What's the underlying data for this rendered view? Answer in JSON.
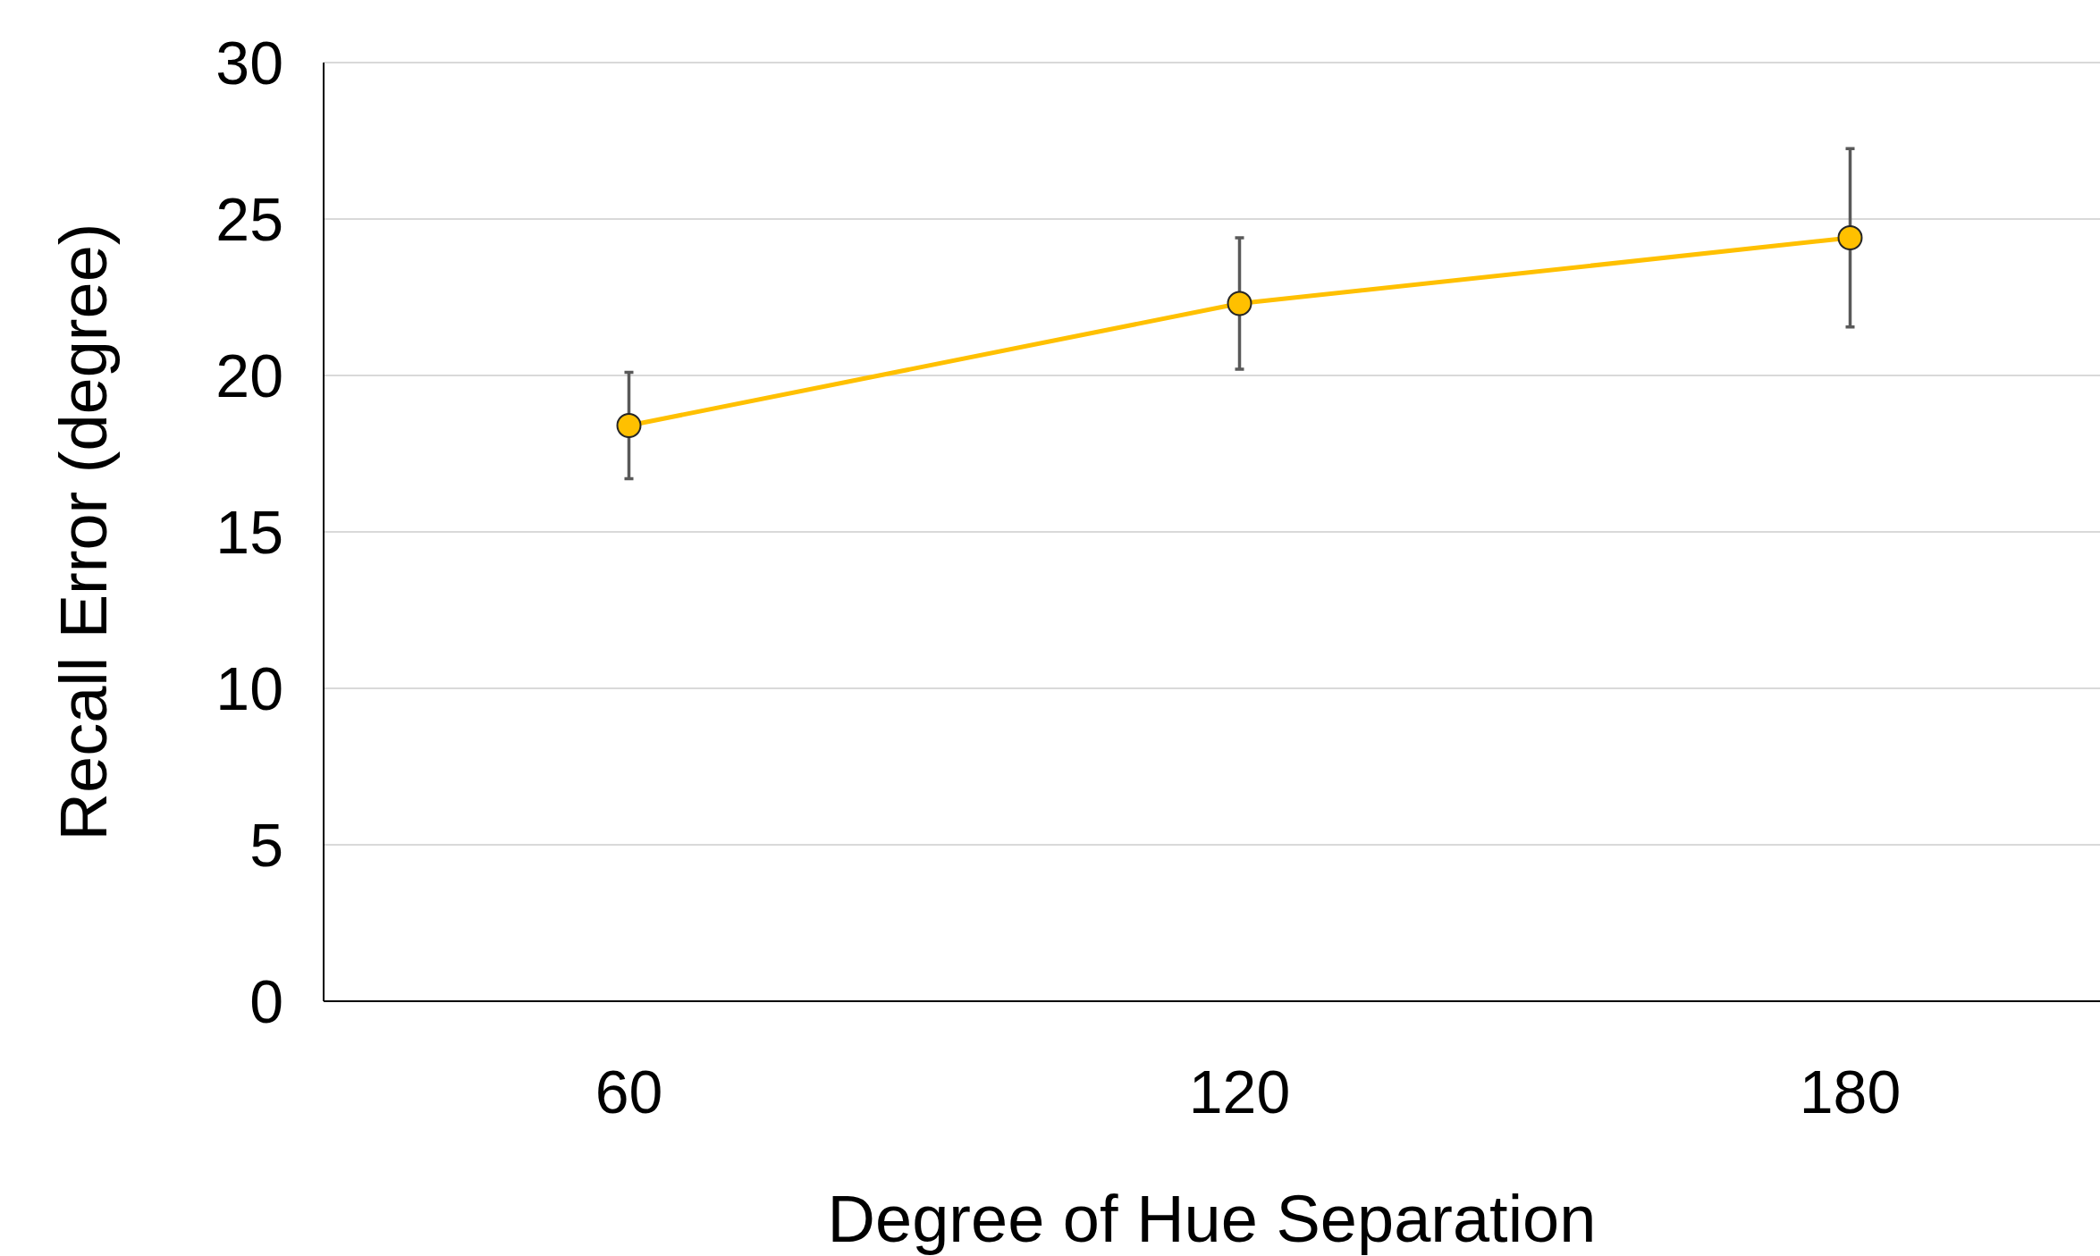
{
  "chart_data": {
    "type": "line",
    "xlabel": "Degree of Hue Separation",
    "ylabel": "Recall Error (degree)",
    "categories": [
      "60",
      "120",
      "180"
    ],
    "series": [
      {
        "color": "#ffc000",
        "values": [
          18.4,
          22.3,
          24.4
        ],
        "errors": [
          1.7,
          2.1,
          2.85
        ]
      }
    ],
    "ylim": [
      0,
      30
    ],
    "yticks": [
      0,
      5,
      10,
      15,
      20,
      25,
      30
    ],
    "grid": "y",
    "marker": "circle"
  }
}
